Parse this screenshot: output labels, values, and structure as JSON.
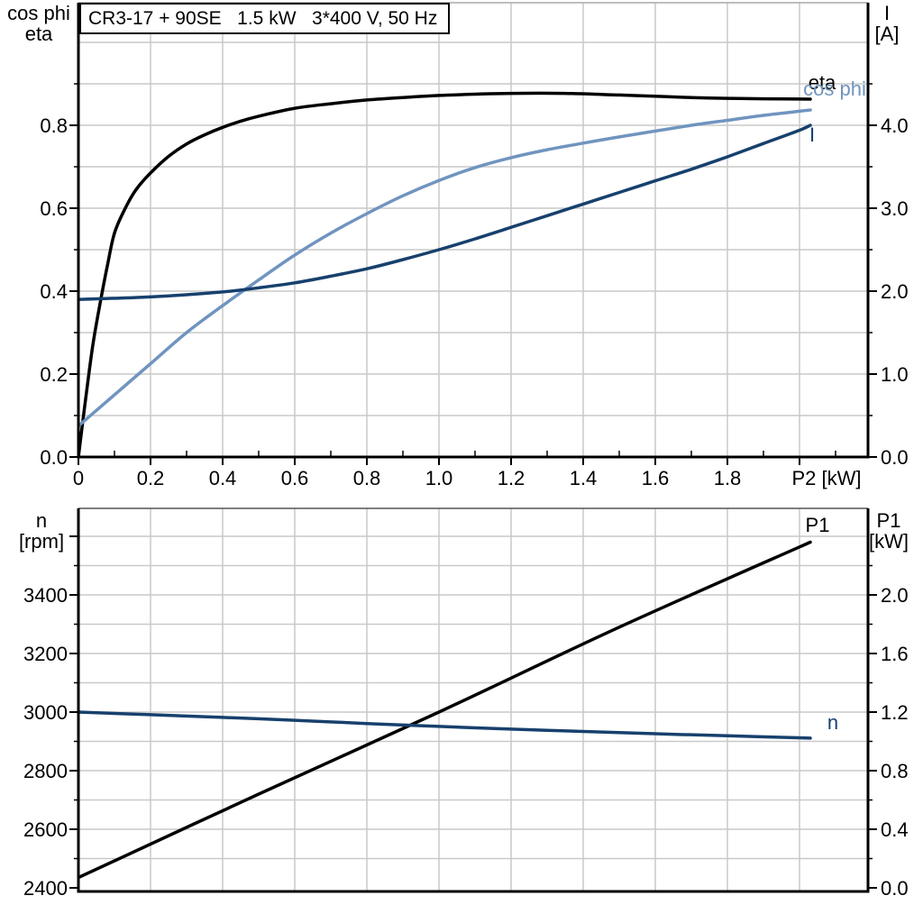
{
  "labels": {
    "top_left_line1": "cos phi",
    "top_left_line2": "eta",
    "top_right_line1": "I",
    "top_right_line2": "[A]",
    "bottom_left_line1": "n",
    "bottom_left_line2": "[rpm]",
    "bottom_right_line1": "P1",
    "bottom_right_line2": "[kW]"
  },
  "colors": {
    "black": "#000000",
    "dark_blue": "#17406d",
    "light_blue": "#7094bf",
    "grid": "#c9c9c9"
  },
  "chart_data": [
    {
      "type": "line",
      "title": "CR3-17 + 90SE   1.5 kW   3*400 V, 50 Hz",
      "xlabel": "P2 [kW]",
      "ylabel_left": "cos phi / eta",
      "ylabel_right": "I [A]",
      "xlim": [
        0,
        2.19
      ],
      "ylim_left": [
        0,
        1.096
      ],
      "ylim_right": [
        0,
        5.48
      ],
      "grid": true,
      "legend_position": "curve-end-labels",
      "x_ticks": [
        {
          "v": 0,
          "label": "0"
        },
        {
          "v": 0.2,
          "label": "0.2"
        },
        {
          "v": 0.4,
          "label": "0.4"
        },
        {
          "v": 0.6,
          "label": "0.6"
        },
        {
          "v": 0.8,
          "label": "0.8"
        },
        {
          "v": 1.0,
          "label": "1.0"
        },
        {
          "v": 1.2,
          "label": "1.2"
        },
        {
          "v": 1.4,
          "label": "1.4"
        },
        {
          "v": 1.6,
          "label": "1.6"
        },
        {
          "v": 1.8,
          "label": "1.8"
        },
        {
          "v": 2.0,
          "label": ""
        }
      ],
      "left_ticks": [
        {
          "v": 0.0,
          "label": "0.0"
        },
        {
          "v": 0.2,
          "label": "0.2"
        },
        {
          "v": 0.4,
          "label": "0.4"
        },
        {
          "v": 0.6,
          "label": "0.6"
        },
        {
          "v": 0.8,
          "label": "0.8"
        }
      ],
      "right_ticks": [
        {
          "v": 0.0,
          "label": "0.0"
        },
        {
          "v": 1.0,
          "label": "1.0"
        },
        {
          "v": 2.0,
          "label": "2.0"
        },
        {
          "v": 3.0,
          "label": "3.0"
        },
        {
          "v": 4.0,
          "label": "4.0"
        }
      ],
      "series": [
        {
          "name": "eta",
          "axis": "left",
          "color": "#000000",
          "points": [
            [
              0,
              0
            ],
            [
              0.02,
              0.14
            ],
            [
              0.04,
              0.27
            ],
            [
              0.06,
              0.37
            ],
            [
              0.08,
              0.46
            ],
            [
              0.1,
              0.54
            ],
            [
              0.13,
              0.6
            ],
            [
              0.16,
              0.645
            ],
            [
              0.2,
              0.685
            ],
            [
              0.25,
              0.725
            ],
            [
              0.3,
              0.755
            ],
            [
              0.35,
              0.777
            ],
            [
              0.4,
              0.795
            ],
            [
              0.45,
              0.81
            ],
            [
              0.5,
              0.822
            ],
            [
              0.6,
              0.841
            ],
            [
              0.7,
              0.852
            ],
            [
              0.8,
              0.861
            ],
            [
              0.9,
              0.867
            ],
            [
              1.0,
              0.872
            ],
            [
              1.1,
              0.875
            ],
            [
              1.2,
              0.877
            ],
            [
              1.35,
              0.877
            ],
            [
              1.5,
              0.873
            ],
            [
              1.6,
              0.87
            ],
            [
              1.7,
              0.867
            ],
            [
              1.8,
              0.865
            ],
            [
              1.9,
              0.864
            ],
            [
              2.03,
              0.863
            ]
          ]
        },
        {
          "name": "cos phi",
          "axis": "left",
          "color": "#7094bf",
          "points": [
            [
              0,
              0.075
            ],
            [
              0.1,
              0.15
            ],
            [
              0.2,
              0.225
            ],
            [
              0.3,
              0.3
            ],
            [
              0.4,
              0.365
            ],
            [
              0.5,
              0.427
            ],
            [
              0.6,
              0.487
            ],
            [
              0.7,
              0.54
            ],
            [
              0.8,
              0.587
            ],
            [
              0.9,
              0.63
            ],
            [
              1.0,
              0.667
            ],
            [
              1.1,
              0.698
            ],
            [
              1.2,
              0.722
            ],
            [
              1.3,
              0.741
            ],
            [
              1.4,
              0.757
            ],
            [
              1.5,
              0.772
            ],
            [
              1.6,
              0.786
            ],
            [
              1.7,
              0.8
            ],
            [
              1.8,
              0.812
            ],
            [
              1.9,
              0.824
            ],
            [
              2.0,
              0.834
            ],
            [
              2.03,
              0.837
            ]
          ]
        },
        {
          "name": "I",
          "axis": "right",
          "color": "#17406d",
          "points": [
            [
              0,
              1.9
            ],
            [
              0.2,
              1.93
            ],
            [
              0.4,
              1.99
            ],
            [
              0.5,
              2.04
            ],
            [
              0.6,
              2.1
            ],
            [
              0.7,
              2.18
            ],
            [
              0.8,
              2.27
            ],
            [
              0.9,
              2.38
            ],
            [
              1.0,
              2.5
            ],
            [
              1.1,
              2.63
            ],
            [
              1.2,
              2.77
            ],
            [
              1.3,
              2.91
            ],
            [
              1.4,
              3.05
            ],
            [
              1.5,
              3.19
            ],
            [
              1.6,
              3.33
            ],
            [
              1.7,
              3.47
            ],
            [
              1.8,
              3.62
            ],
            [
              1.9,
              3.78
            ],
            [
              2.0,
              3.94
            ],
            [
              2.03,
              4.0
            ]
          ]
        }
      ]
    },
    {
      "type": "line",
      "title": "",
      "xlabel": "",
      "ylabel_left": "n [rpm]",
      "ylabel_right": "P1 [kW]",
      "xlim": [
        0,
        2.19
      ],
      "ylim_left": [
        2388,
        3695
      ],
      "ylim_right": [
        -0.03,
        2.6
      ],
      "grid": true,
      "legend_position": "curve-end-labels",
      "x_ticks": [],
      "left_ticks": [
        {
          "v": 2400,
          "label": "2400"
        },
        {
          "v": 2600,
          "label": "2600"
        },
        {
          "v": 2800,
          "label": "2800"
        },
        {
          "v": 3000,
          "label": "3000"
        },
        {
          "v": 3200,
          "label": "3200"
        },
        {
          "v": 3400,
          "label": "3400"
        },
        {
          "v": 3600,
          "label": ""
        }
      ],
      "right_ticks": [
        {
          "v": 0.0,
          "label": "0.0"
        },
        {
          "v": 0.4,
          "label": "0.4"
        },
        {
          "v": 0.8,
          "label": "0.8"
        },
        {
          "v": 1.2,
          "label": "1.2"
        },
        {
          "v": 1.6,
          "label": "1.6"
        },
        {
          "v": 2.0,
          "label": "2.0"
        }
      ],
      "series": [
        {
          "name": "P1",
          "axis": "right",
          "color": "#000000",
          "points": [
            [
              0,
              0.07
            ],
            [
              0.5,
              0.64
            ],
            [
              1.0,
              1.2
            ],
            [
              1.5,
              1.78
            ],
            [
              2.03,
              2.36
            ]
          ]
        },
        {
          "name": "n",
          "axis": "left",
          "color": "#17406d",
          "points": [
            [
              0,
              3000
            ],
            [
              0.2,
              2991
            ],
            [
              0.4,
              2982
            ],
            [
              0.6,
              2972
            ],
            [
              0.8,
              2961
            ],
            [
              1.0,
              2951
            ],
            [
              1.2,
              2942
            ],
            [
              1.4,
              2934
            ],
            [
              1.6,
              2926
            ],
            [
              1.8,
              2919
            ],
            [
              2.03,
              2911
            ]
          ]
        }
      ]
    }
  ]
}
